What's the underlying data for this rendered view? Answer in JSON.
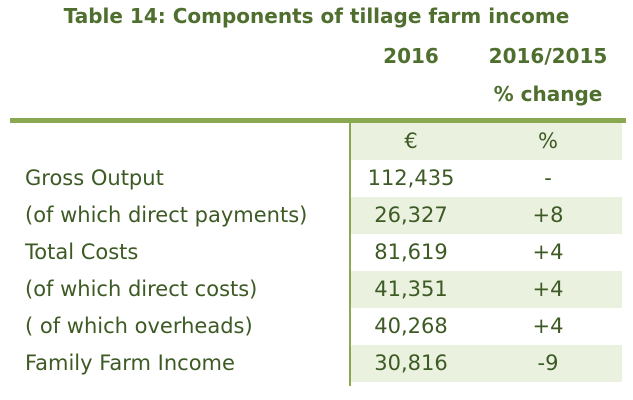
{
  "title": "Table 14: Components of tillage farm income",
  "columns": {
    "year": "2016",
    "change_line1": "2016/2015",
    "change_line2": "% change"
  },
  "units": {
    "value": "€",
    "change": "%"
  },
  "rows": [
    {
      "label": "Gross Output",
      "value": "112,435",
      "change": "-"
    },
    {
      "label": "(of which direct payments)",
      "value": "26,327",
      "change": "+8"
    },
    {
      "label": "Total Costs",
      "value": "81,619",
      "change": "+4"
    },
    {
      "label": "(of which direct costs)",
      "value": "41,351",
      "change": "+4"
    },
    {
      "label": "( of which overheads)",
      "value": "40,268",
      "change": "+4"
    },
    {
      "label": "Family Farm Income",
      "value": "30,816",
      "change": "-9"
    }
  ],
  "colors": {
    "text": "#3d5a24",
    "heading": "#4f6f2e",
    "rule": "#8aa852",
    "band": "#eaf1df"
  }
}
